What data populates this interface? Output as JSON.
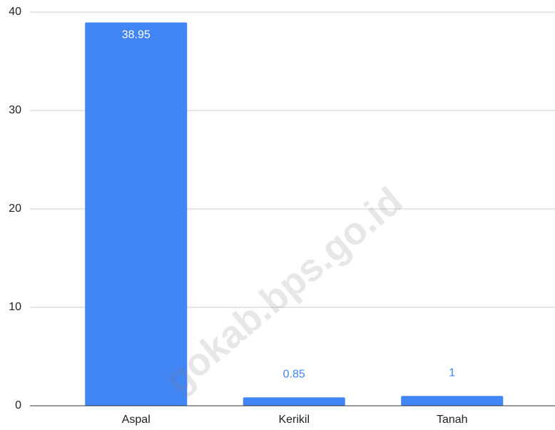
{
  "chart_data": {
    "type": "bar",
    "categories": [
      "Aspal",
      "Kerikil",
      "Tanah"
    ],
    "values": [
      38.95,
      0.85,
      1
    ],
    "color": "#4285f4",
    "ylim": [
      0,
      40
    ],
    "yticks": [
      0,
      10,
      20,
      30,
      40
    ],
    "grid": true,
    "watermark": "gokab.bps.go.id"
  }
}
